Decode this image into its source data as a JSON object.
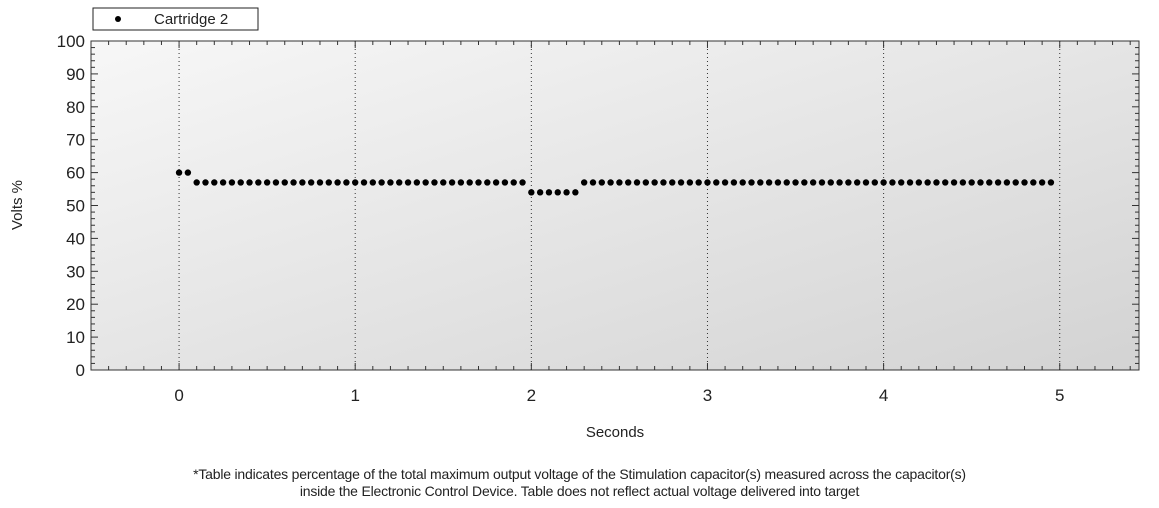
{
  "chart_data": {
    "type": "scatter",
    "title": "",
    "xlabel": "Seconds",
    "ylabel": "Volts %",
    "xlim": [
      -0.5,
      5.45
    ],
    "ylim": [
      0,
      100
    ],
    "x_ticks": [
      0,
      1,
      2,
      3,
      4,
      5
    ],
    "x_tick_labels": [
      "0",
      "1",
      "2",
      "3",
      "4",
      "5"
    ],
    "y_ticks": [
      0,
      10,
      20,
      30,
      40,
      50,
      60,
      70,
      80,
      90,
      100
    ],
    "y_tick_labels": [
      "0",
      "10",
      "20",
      "30",
      "40",
      "50",
      "60",
      "70",
      "80",
      "90",
      "100"
    ],
    "grid": "vertical dotted lines at major x ticks",
    "legend_position": "top-left",
    "series": [
      {
        "name": "Cartridge 2",
        "marker_color": "#000000",
        "x": [
          0,
          0.05,
          0.1,
          0.15,
          0.2,
          0.25,
          0.3,
          0.35,
          0.4,
          0.45,
          0.5,
          0.55,
          0.6,
          0.65,
          0.7,
          0.75,
          0.8,
          0.85,
          0.9,
          0.95,
          1.0,
          1.05,
          1.1,
          1.15,
          1.2,
          1.25,
          1.3,
          1.35,
          1.4,
          1.45,
          1.5,
          1.55,
          1.6,
          1.65,
          1.7,
          1.75,
          1.8,
          1.85,
          1.9,
          1.95,
          2.0,
          2.05,
          2.1,
          2.15,
          2.2,
          2.25,
          2.3,
          2.35,
          2.4,
          2.45,
          2.5,
          2.55,
          2.6,
          2.65,
          2.7,
          2.75,
          2.8,
          2.85,
          2.9,
          2.95,
          3.0,
          3.05,
          3.1,
          3.15,
          3.2,
          3.25,
          3.3,
          3.35,
          3.4,
          3.45,
          3.5,
          3.55,
          3.6,
          3.65,
          3.7,
          3.75,
          3.8,
          3.85,
          3.9,
          3.95,
          4.0,
          4.05,
          4.1,
          4.15,
          4.2,
          4.25,
          4.3,
          4.35,
          4.4,
          4.45,
          4.5,
          4.55,
          4.6,
          4.65,
          4.7,
          4.75,
          4.8,
          4.85,
          4.9,
          4.95
        ],
        "y": [
          60,
          60,
          57,
          57,
          57,
          57,
          57,
          57,
          57,
          57,
          57,
          57,
          57,
          57,
          57,
          57,
          57,
          57,
          57,
          57,
          57,
          57,
          57,
          57,
          57,
          57,
          57,
          57,
          57,
          57,
          57,
          57,
          57,
          57,
          57,
          57,
          57,
          57,
          57,
          57,
          54,
          54,
          54,
          54,
          54,
          54,
          57,
          57,
          57,
          57,
          57,
          57,
          57,
          57,
          57,
          57,
          57,
          57,
          57,
          57,
          57,
          57,
          57,
          57,
          57,
          57,
          57,
          57,
          57,
          57,
          57,
          57,
          57,
          57,
          57,
          57,
          57,
          57,
          57,
          57,
          57,
          57,
          57,
          57,
          57,
          57,
          57,
          57,
          57,
          57,
          57,
          57,
          57,
          57,
          57,
          57,
          57,
          57,
          57,
          57
        ]
      }
    ]
  },
  "footnote": {
    "line1": "*Table indicates percentage of the total maximum output voltage of the Stimulation capacitor(s) measured across the capacitor(s)",
    "line2": "inside the Electronic Control Device. Table does not reflect actual voltage delivered into target"
  }
}
